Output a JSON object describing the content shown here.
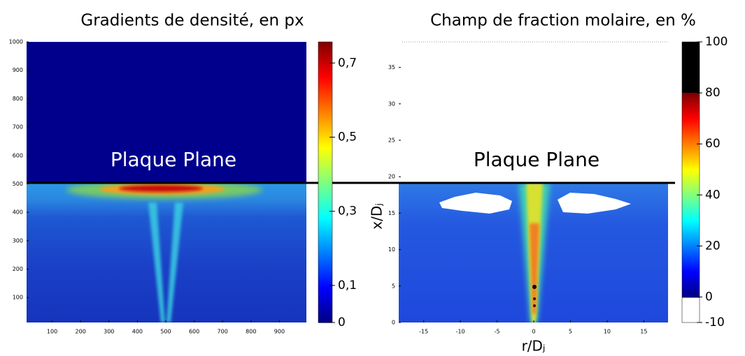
{
  "chart_data": [
    {
      "type": "heatmap",
      "title": "Gradients de densité, en px",
      "annotation": "Plaque Plane",
      "xlim": [
        10,
        995
      ],
      "xticks": [
        100,
        200,
        300,
        400,
        500,
        600,
        700,
        800,
        900
      ],
      "ylim": [
        12,
        1000
      ],
      "yticks": [
        100,
        200,
        300,
        400,
        500,
        600,
        700,
        800,
        900,
        1000
      ],
      "colorbar": {
        "colormap": "jet",
        "lim": [
          0,
          0.757
        ],
        "ticks": [
          0,
          {
            "value": 0.1,
            "label": "0,1"
          },
          {
            "value": 0.3,
            "label": "0,3"
          },
          {
            "value": 0.5,
            "label": "0,5"
          },
          {
            "value": 0.7,
            "label": "0,7"
          }
        ]
      }
    },
    {
      "type": "heatmap",
      "title": "Champ de fraction molaire, en %",
      "annotation": "Plaque Plane",
      "xlabel": "r/Dⱼ",
      "ylabel": "x/Dⱼ",
      "xlim": [
        -18.4,
        18.3
      ],
      "xticks": [
        -15,
        -10,
        -5,
        0,
        5,
        10,
        15
      ],
      "ylim": [
        0,
        38.5
      ],
      "yticks": [
        0,
        5,
        10,
        15,
        20,
        25,
        30,
        35
      ],
      "colorbar": {
        "colormap": "jet",
        "colormap_range": [
          0,
          80
        ],
        "under_color": "#ffffff",
        "over_color": "#000000",
        "lim": [
          -10,
          100
        ],
        "ticks": [
          -10,
          0,
          20,
          40,
          60,
          80,
          100
        ]
      }
    }
  ]
}
